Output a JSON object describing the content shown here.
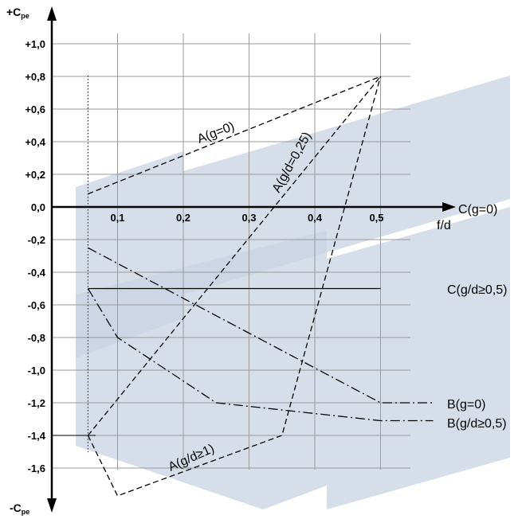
{
  "chart_data": {
    "type": "line",
    "title": "",
    "xlabel": "f/d",
    "ylabel_top": "+Cpe",
    "ylabel_bottom": "-Cpe",
    "xlim": [
      0,
      0.5
    ],
    "ylim": [
      -1.6,
      1.0
    ],
    "grid": true,
    "x_ticks": [
      "0,1",
      "0,2",
      "0,3",
      "0,4",
      "0,5"
    ],
    "y_ticks": [
      "+1,0",
      "+0,8",
      "+0,6",
      "+0,4",
      "+0,2",
      "0,0",
      "-0,2",
      "-0,4",
      "-0,6",
      "-0,8",
      "-1,0",
      "-1,2",
      "-1,4",
      "-1,6"
    ],
    "series": [
      {
        "name": "A(g=0)",
        "style": "dashed",
        "x": [
          0.055,
          0.5
        ],
        "y": [
          0.08,
          0.8
        ]
      },
      {
        "name": "A(g/d=0,25)",
        "style": "dashed",
        "x": [
          0.055,
          0.5
        ],
        "y": [
          -1.4,
          0.8
        ]
      },
      {
        "name": "A(g/d≥1)",
        "style": "dashed",
        "x": [
          0.055,
          0.1,
          0.35,
          0.5
        ],
        "y": [
          -1.4,
          -1.77,
          -1.4,
          0.8
        ]
      },
      {
        "name": "C(g=0)",
        "style": "solid",
        "x": [
          0.0,
          0.5
        ],
        "y": [
          0.0,
          0.0
        ]
      },
      {
        "name": "C(g/d≥0,5)",
        "style": "solid",
        "x": [
          0.055,
          0.5
        ],
        "y": [
          -0.5,
          -0.5
        ]
      },
      {
        "name": "B(g=0)",
        "style": "dashdot",
        "x": [
          0.055,
          0.5,
          0.58
        ],
        "y": [
          -0.25,
          -1.2,
          -1.2
        ]
      },
      {
        "name": "B(g/d≥0,5)",
        "style": "dashdot",
        "x": [
          0.055,
          0.1,
          0.25,
          0.5,
          0.58
        ],
        "y": [
          -0.5,
          -0.8,
          -1.2,
          -1.31,
          -1.31
        ]
      }
    ]
  },
  "labels": {
    "y_top": "+C",
    "y_top_sub": "pe",
    "y_bottom": "-C",
    "y_bottom_sub": "pe",
    "x_axis": "f/d",
    "c_g0": "C(g=0)",
    "c_gd05": "C(g/d≥0,5)",
    "b_g0": "B(g=0)",
    "b_gd05": "B(g/d≥0,5)",
    "a_g0": "A(g=0)",
    "a_gd025": "A(g/d=0,25)",
    "a_gd1": "A(g/d≥1)"
  },
  "colors": {
    "watermark": "#c8d3e3",
    "grid": "#9a9a9a",
    "ink": "#000000"
  }
}
